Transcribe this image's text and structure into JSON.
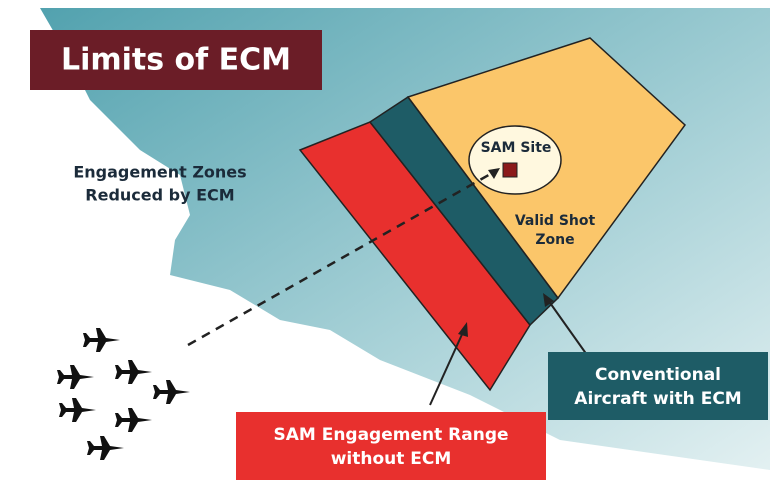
{
  "title": "Limits of ECM",
  "engagement_note": {
    "lines": [
      "Engagement Zones",
      "Reduced by ECM"
    ]
  },
  "sam_site": {
    "label": "SAM Site"
  },
  "valid_shot_zone": {
    "lines": [
      "Valid Shot",
      "Zone"
    ]
  },
  "ecm_label": {
    "lines": [
      "Conventional",
      "Aircraft with ECM"
    ]
  },
  "sam_range_label": {
    "lines": [
      "SAM Engagement Range",
      "without ECM"
    ]
  }
}
